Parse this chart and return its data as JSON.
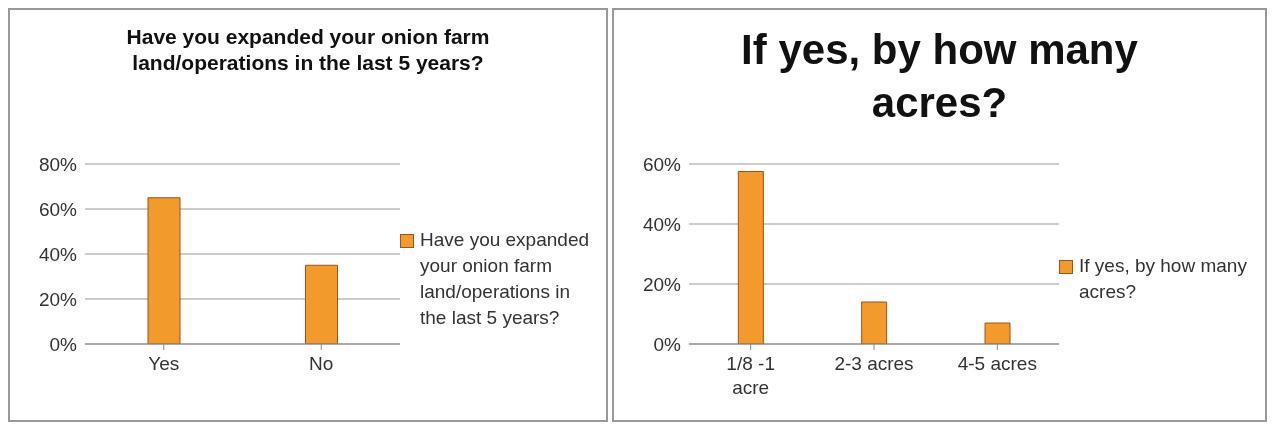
{
  "chart_data": [
    {
      "type": "bar",
      "title": "Have you expanded your onion farm land/operations in the last 5 years?",
      "categories": [
        "Yes",
        "No"
      ],
      "series": [
        {
          "name": "Have you expanded your onion farm land/operations in the last 5 years?",
          "color": "#f39a2c",
          "values": [
            65,
            35
          ]
        }
      ],
      "ylim": [
        0,
        80
      ],
      "yticks": [
        {
          "value": 0,
          "label": "0%"
        },
        {
          "value": 20,
          "label": "20%"
        },
        {
          "value": 40,
          "label": "40%"
        },
        {
          "value": 60,
          "label": "60%"
        },
        {
          "value": 80,
          "label": "80%"
        }
      ],
      "grid": "y",
      "legend": "right"
    },
    {
      "type": "bar",
      "title": "If yes, by how many acres?",
      "categories": [
        "1/8 -1 acre",
        "2-3 acres",
        "4-5 acres"
      ],
      "series": [
        {
          "name": "If yes, by how many acres?",
          "color": "#f39a2c",
          "values": [
            57.5,
            14,
            7
          ]
        }
      ],
      "ylim": [
        0,
        60
      ],
      "yticks": [
        {
          "value": 0,
          "label": "0%"
        },
        {
          "value": 20,
          "label": "20%"
        },
        {
          "value": 40,
          "label": "40%"
        },
        {
          "value": 60,
          "label": "60%"
        }
      ],
      "grid": "y",
      "legend": "right"
    }
  ]
}
